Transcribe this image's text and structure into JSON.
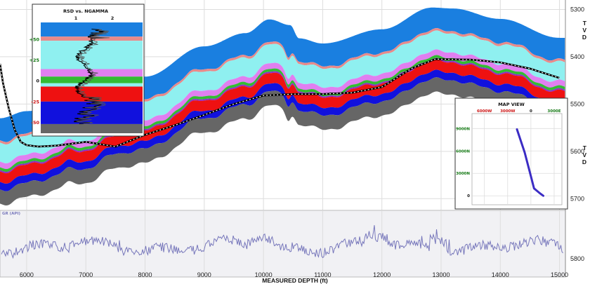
{
  "chart_data": [
    {
      "type": "area",
      "name": "cross-section",
      "xlim": [
        5550,
        15100
      ],
      "ylim": [
        5280,
        5710
      ],
      "x_ticks": [
        6000,
        7000,
        8000,
        9000,
        10000,
        11000,
        12000,
        13000,
        14000,
        15000
      ],
      "y_ticks": [
        5300,
        5400,
        5500,
        5600,
        5700
      ],
      "xlabel": "MEASURED DEPTH (ft)",
      "right_axis_letters": [
        "T",
        "V",
        "D"
      ],
      "layers": [
        {
          "color": "#1a7fe0",
          "thickness": 48
        },
        {
          "color": "#e88a8a",
          "thickness": 5
        },
        {
          "color": "#8ff0f0",
          "thickness": 40
        },
        {
          "color": "#e07ff0",
          "thickness": 12
        },
        {
          "color": "#33bb33",
          "thickness": 6
        },
        {
          "color": "#8c2bc7",
          "thickness": 3
        },
        {
          "color": "#ee1111",
          "thickness": 22
        },
        {
          "color": "#1111dd",
          "thickness": 16
        },
        {
          "color": "#666666",
          "thickness": 30
        }
      ],
      "top_surface": {
        "x": [
          5550,
          6000,
          7000,
          8000,
          9000,
          9700,
          10100,
          10450,
          10600,
          11000,
          12000,
          12850,
          13200,
          14000,
          15000
        ],
        "y": [
          5530,
          5515,
          5478,
          5442,
          5378,
          5350,
          5321,
          5333,
          5361,
          5372,
          5342,
          5296,
          5298,
          5320,
          5360
        ]
      },
      "gr_band": {
        "ylim": [
          5720,
          5830
        ],
        "y_ticks": [
          5800
        ]
      },
      "wellbore": {
        "x": [
          5550,
          5600,
          5700,
          5800,
          5900,
          6000,
          6200,
          6500,
          7000,
          7500,
          8000,
          8500,
          9000,
          9500,
          10000,
          10500,
          11000,
          11500,
          12000,
          12500,
          12900,
          13500,
          14000,
          14500,
          15000
        ],
        "y": [
          5415,
          5455,
          5510,
          5555,
          5580,
          5587,
          5590,
          5588,
          5580,
          5590,
          5565,
          5545,
          5523,
          5500,
          5482,
          5479,
          5479,
          5476,
          5464,
          5425,
          5405,
          5406,
          5412,
          5425,
          5445
        ]
      }
    },
    {
      "type": "area",
      "name": "RSD vs. NGAMMA",
      "title": "RSD vs. NGAMMA",
      "col_labels": [
        "1",
        "2"
      ],
      "y_ticks": [
        "+50",
        "+25",
        "0",
        "-25",
        "-50"
      ],
      "tick_colors": [
        "#117711",
        "#117711",
        "#111111",
        "#cc1111",
        "#cc1111"
      ],
      "y_tick_values": [
        50,
        25,
        0,
        -25,
        -50
      ],
      "ylim": [
        -63,
        70
      ]
    },
    {
      "type": "line",
      "name": "map-view",
      "title": "MAP VIEW",
      "x_ticks": [
        "6000W",
        "3000W",
        "0",
        "3000E"
      ],
      "x_tick_colors": [
        "#cc1111",
        "#cc1111",
        "#111111",
        "#117711"
      ],
      "x_tick_values": [
        -6000,
        -3000,
        0,
        3000
      ],
      "y_ticks": [
        "9000N",
        "6000N",
        "3000N",
        "0"
      ],
      "y_tick_colors": [
        "#117711",
        "#117711",
        "#117711",
        "#111111"
      ],
      "y_tick_values": [
        9000,
        6000,
        3000,
        0
      ],
      "xlim": [
        -7600,
        4000
      ],
      "ylim": [
        -1200,
        11000
      ],
      "x": [
        -1800,
        -800,
        0,
        400,
        1200,
        1600
      ],
      "y": [
        8900,
        5800,
        2600,
        1000,
        300,
        0
      ],
      "line_color": "#3b2cc4"
    },
    {
      "type": "line",
      "name": "gamma-ray",
      "label": "GR (API)",
      "line_color": "#7777bb"
    }
  ]
}
